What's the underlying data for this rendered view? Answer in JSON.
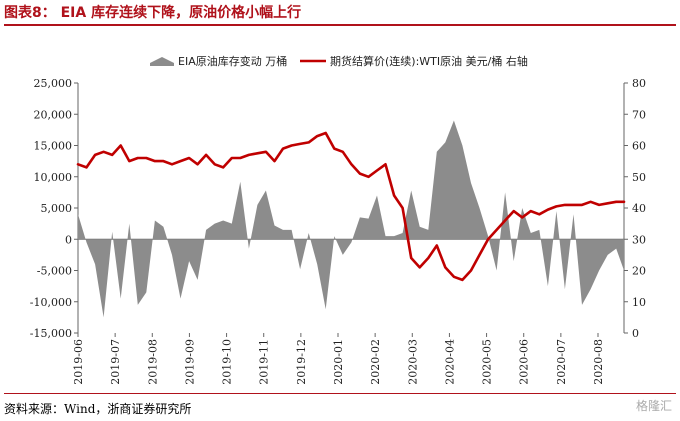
{
  "header": {
    "title": "图表8：  EIA 库存连续下降，原油价格小幅上行"
  },
  "footer": {
    "source": "资料来源：Wind，浙商证券研究所",
    "watermark": "格隆汇"
  },
  "chart_data": {
    "type": "area",
    "colors": {
      "inventory": "#8c8c8c",
      "price": "#c00000"
    },
    "legend_position": "top",
    "grid": false,
    "x_categories": [
      "2019-06",
      "2019-07",
      "2019-08",
      "2019-09",
      "2019-10",
      "2019-11",
      "2019-12",
      "2020-01",
      "2020-02",
      "2020-03",
      "2020-04",
      "2020-05",
      "2020-06",
      "2020-07",
      "2020-08"
    ],
    "x_range": [
      0,
      14.7
    ],
    "y_left": {
      "ticks": [
        "25,000",
        "20,000",
        "15,000",
        "10,000",
        "5,000",
        "0",
        "-5,000",
        "-10,000",
        "-15,000"
      ],
      "range": [
        -15000,
        25000
      ]
    },
    "y_right": {
      "ticks": [
        "80",
        "70",
        "60",
        "50",
        "40",
        "30",
        "20",
        "10",
        "0"
      ],
      "range": [
        0,
        80
      ]
    },
    "series": [
      {
        "name": "EIA原油库存变动 万桶",
        "axis": "left",
        "kind": "area",
        "x": [
          0.0,
          0.23,
          0.46,
          0.69,
          0.92,
          1.15,
          1.38,
          1.61,
          1.84,
          2.07,
          2.3,
          2.53,
          2.76,
          2.99,
          3.22,
          3.45,
          3.68,
          3.91,
          4.14,
          4.37,
          4.6,
          4.83,
          5.06,
          5.29,
          5.52,
          5.75,
          5.98,
          6.21,
          6.44,
          6.67,
          6.9,
          7.13,
          7.36,
          7.59,
          7.82,
          8.05,
          8.28,
          8.51,
          8.74,
          8.97,
          9.2,
          9.43,
          9.66,
          9.89,
          10.12,
          10.35,
          10.58,
          10.81,
          11.04,
          11.27,
          11.5,
          11.73,
          11.96,
          12.19,
          12.42,
          12.65,
          12.88,
          13.11,
          13.34,
          13.57,
          13.8,
          14.03,
          14.26,
          14.49,
          14.7
        ],
        "values": [
          4000,
          -500,
          -4000,
          -12500,
          1200,
          -9500,
          2500,
          -10500,
          -8500,
          3000,
          2000,
          -2500,
          -9500,
          -3500,
          -6500,
          1500,
          2500,
          3000,
          2500,
          9200,
          -1500,
          5500,
          7800,
          2200,
          1500,
          1500,
          -4800,
          1000,
          -4000,
          -11200,
          500,
          -2500,
          -500,
          3500,
          3300,
          7000,
          500,
          500,
          1000,
          7800,
          2000,
          1500,
          14000,
          15500,
          19000,
          15000,
          9000,
          5000,
          500,
          -5000,
          7500,
          -3500,
          5000,
          1000,
          1500,
          -7500,
          4500,
          -8000,
          4000,
          -10500,
          -8000,
          -5000,
          -2500,
          -1500,
          -5000
        ]
      },
      {
        "name": "期货结算价(连续):WTI原油 美元/桶 右轴",
        "axis": "right",
        "kind": "line",
        "x": [
          0.0,
          0.23,
          0.46,
          0.69,
          0.92,
          1.15,
          1.38,
          1.61,
          1.84,
          2.07,
          2.3,
          2.53,
          2.76,
          2.99,
          3.22,
          3.45,
          3.68,
          3.91,
          4.14,
          4.37,
          4.6,
          4.83,
          5.06,
          5.29,
          5.52,
          5.75,
          5.98,
          6.21,
          6.44,
          6.67,
          6.9,
          7.13,
          7.36,
          7.59,
          7.82,
          8.05,
          8.28,
          8.51,
          8.74,
          8.97,
          9.2,
          9.43,
          9.66,
          9.89,
          10.12,
          10.35,
          10.58,
          10.81,
          11.04,
          11.27,
          11.5,
          11.73,
          11.96,
          12.19,
          12.42,
          12.65,
          12.88,
          13.11,
          13.34,
          13.57,
          13.8,
          14.03,
          14.26,
          14.49,
          14.7
        ],
        "values": [
          54,
          53,
          57,
          58,
          57,
          60,
          55,
          56,
          56,
          55,
          55,
          54,
          55,
          56,
          54,
          57,
          54,
          53,
          56,
          56,
          57,
          57.5,
          58,
          55,
          59,
          60,
          60.5,
          61,
          63,
          64,
          59,
          58,
          54,
          51,
          50,
          52,
          54,
          44,
          40,
          24,
          21,
          24,
          28,
          21,
          18,
          17,
          20,
          25,
          30,
          33,
          36,
          39,
          37,
          39,
          38,
          39.5,
          40.5,
          41,
          41,
          41,
          42,
          41,
          41.5,
          42,
          42
        ]
      }
    ]
  }
}
